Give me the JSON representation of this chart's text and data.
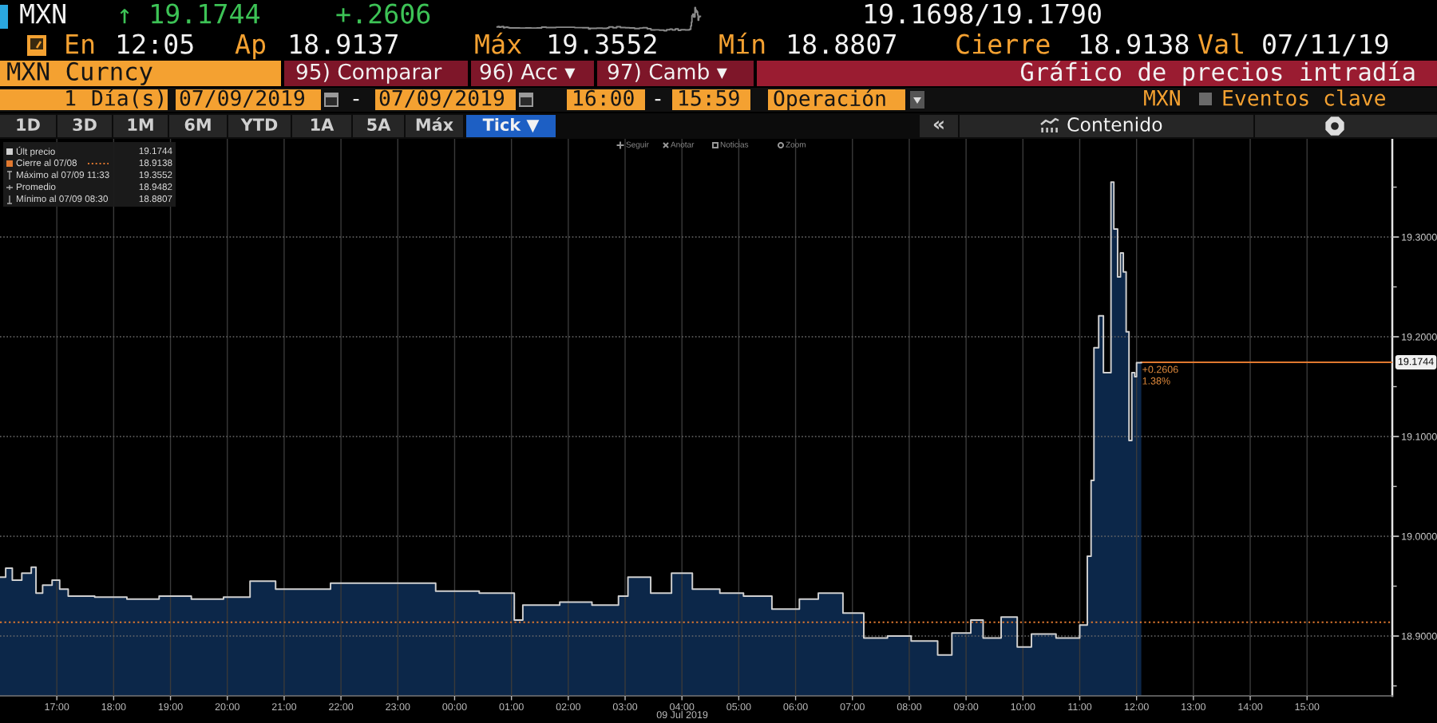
{
  "chart_data": {
    "type": "area",
    "title": "Gráfico de precios intradía",
    "xlabel": "09 Jul 2019",
    "x": [
      "2019-07-08T16:00",
      "2019-07-08T16:06",
      "2019-07-08T16:13",
      "2019-07-08T16:23",
      "2019-07-08T16:33",
      "2019-07-08T16:38",
      "2019-07-08T16:45",
      "2019-07-08T16:55",
      "2019-07-08T17:03",
      "2019-07-08T17:12",
      "2019-07-08T17:40",
      "2019-07-08T18:14",
      "2019-07-08T18:48",
      "2019-07-08T19:22",
      "2019-07-08T19:56",
      "2019-07-08T20:24",
      "2019-07-08T20:51",
      "2019-07-08T21:20",
      "2019-07-08T21:49",
      "2019-07-08T22:45",
      "2019-07-08T23:40",
      "2019-07-09T00:26",
      "2019-07-09T01:03",
      "2019-07-09T01:12",
      "2019-07-09T01:51",
      "2019-07-09T02:25",
      "2019-07-09T02:53",
      "2019-07-09T03:03",
      "2019-07-09T03:27",
      "2019-07-09T03:49",
      "2019-07-09T04:11",
      "2019-07-09T04:40",
      "2019-07-09T05:05",
      "2019-07-09T05:35",
      "2019-07-09T06:04",
      "2019-07-09T06:24",
      "2019-07-09T06:50",
      "2019-07-09T07:12",
      "2019-07-09T07:37",
      "2019-07-09T08:02",
      "2019-07-09T08:30",
      "2019-07-09T08:45",
      "2019-07-09T09:05",
      "2019-07-09T09:18",
      "2019-07-09T09:37",
      "2019-07-09T09:54",
      "2019-07-09T10:09",
      "2019-07-09T10:35",
      "2019-07-09T11:00",
      "2019-07-09T11:08",
      "2019-07-09T11:12",
      "2019-07-09T11:15",
      "2019-07-09T11:20",
      "2019-07-09T11:25",
      "2019-07-09T11:33",
      "2019-07-09T11:36",
      "2019-07-09T11:40",
      "2019-07-09T11:43",
      "2019-07-09T11:46",
      "2019-07-09T11:49",
      "2019-07-09T11:52",
      "2019-07-09T11:55",
      "2019-07-09T11:58",
      "2019-07-09T12:00",
      "2019-07-09T12:05"
    ],
    "series": [
      {
        "color": "#0c2749",
        "values": [
          18.959,
          18.968,
          18.956,
          18.963,
          18.969,
          18.943,
          18.951,
          18.956,
          18.947,
          18.94,
          18.939,
          18.937,
          18.94,
          18.937,
          18.939,
          18.955,
          18.947,
          18.947,
          18.953,
          18.953,
          18.945,
          18.943,
          18.916,
          18.931,
          18.934,
          18.931,
          18.94,
          18.959,
          18.943,
          18.963,
          18.947,
          18.943,
          18.94,
          18.927,
          18.937,
          18.943,
          18.923,
          18.898,
          18.9,
          18.895,
          18.881,
          18.903,
          18.916,
          18.898,
          18.919,
          18.889,
          18.902,
          18.898,
          18.911,
          18.98,
          19.056,
          19.189,
          19.221,
          19.164,
          19.355,
          19.308,
          19.26,
          19.284,
          19.265,
          19.205,
          19.096,
          19.164,
          19.16,
          19.174,
          19.174
        ]
      },
      {
        "type": "step",
        "name": "Últ precio",
        "color": "#d0d0d0",
        "values": [
          18.959,
          18.968,
          18.956,
          18.963,
          18.969,
          18.943,
          18.951,
          18.956,
          18.947,
          18.94,
          18.939,
          18.937,
          18.94,
          18.937,
          18.939,
          18.955,
          18.947,
          18.947,
          18.953,
          18.953,
          18.945,
          18.943,
          18.916,
          18.931,
          18.934,
          18.931,
          18.94,
          18.959,
          18.943,
          18.963,
          18.947,
          18.943,
          18.94,
          18.927,
          18.937,
          18.943,
          18.923,
          18.898,
          18.9,
          18.895,
          18.881,
          18.903,
          18.916,
          18.898,
          18.919,
          18.889,
          18.902,
          18.898,
          18.911,
          18.98,
          19.056,
          19.189,
          19.221,
          19.164,
          19.355,
          19.308,
          19.26,
          19.284,
          19.265,
          19.205,
          19.096,
          19.164,
          19.16,
          19.174,
          19.174
        ]
      }
    ],
    "xlim": [
      "2019-07-08T16:00",
      "2019-07-09T16:30"
    ],
    "xticks": [
      {
        "value": "2019-07-08T17:00",
        "label": "17:00"
      },
      {
        "value": "2019-07-08T18:00",
        "label": "18:00"
      },
      {
        "value": "2019-07-08T19:00",
        "label": "19:00"
      },
      {
        "value": "2019-07-08T20:00",
        "label": "20:00"
      },
      {
        "value": "2019-07-08T21:00",
        "label": "21:00"
      },
      {
        "value": "2019-07-08T22:00",
        "label": "22:00"
      },
      {
        "value": "2019-07-08T23:00",
        "label": "23:00"
      },
      {
        "value": "2019-07-09T00:00",
        "label": "00:00"
      },
      {
        "value": "2019-07-09T01:00",
        "label": "01:00"
      },
      {
        "value": "2019-07-09T02:00",
        "label": "02:00"
      },
      {
        "value": "2019-07-09T03:00",
        "label": "03:00"
      },
      {
        "value": "2019-07-09T04:00",
        "label": "04:00"
      },
      {
        "value": "2019-07-09T05:00",
        "label": "05:00"
      },
      {
        "value": "2019-07-09T06:00",
        "label": "06:00"
      },
      {
        "value": "2019-07-09T07:00",
        "label": "07:00"
      },
      {
        "value": "2019-07-09T08:00",
        "label": "08:00"
      },
      {
        "value": "2019-07-09T09:00",
        "label": "09:00"
      },
      {
        "value": "2019-07-09T10:00",
        "label": "10:00"
      },
      {
        "value": "2019-07-09T11:00",
        "label": "11:00"
      },
      {
        "value": "2019-07-09T12:00",
        "label": "12:00"
      },
      {
        "value": "2019-07-09T13:00",
        "label": "13:00"
      },
      {
        "value": "2019-07-09T14:00",
        "label": "14:00"
      },
      {
        "value": "2019-07-09T15:00",
        "label": "15:00"
      }
    ],
    "ylim": [
      18.84,
      19.4
    ],
    "yticks": [
      {
        "value": 18.85,
        "label": null
      },
      {
        "value": 18.9,
        "label": "18.9000"
      },
      {
        "value": 18.95,
        "label": null
      },
      {
        "value": 19.0,
        "label": "19.0000"
      },
      {
        "value": 19.05,
        "label": null
      },
      {
        "value": 19.1,
        "label": "19.1000"
      },
      {
        "value": 19.15,
        "label": null
      },
      {
        "value": 19.2,
        "label": "19.2000"
      },
      {
        "value": 19.25,
        "label": null
      },
      {
        "value": 19.3,
        "label": "19.3000"
      },
      {
        "value": 19.35,
        "label": null
      }
    ],
    "grid": true,
    "legend": "top left",
    "ref_lines": [
      {
        "axis": "y",
        "value": 18.9138,
        "label": "Cierre al 07/08",
        "color": "#e0782f",
        "line_style": "dotted"
      }
    ],
    "annotations": [
      "MXN",
      "↑ 19.1744",
      "+.2606",
      "19.1698/19.1790",
      "En",
      "12:05",
      "Ap",
      "18.9137",
      "Máx",
      "19.3552",
      "Mín",
      "18.8807",
      "Cierre",
      "18.9138",
      "Val",
      "07/11/19",
      "MXN Curncy",
      "95) Comparar",
      "96) Acc ▾",
      "97) Camb ▾",
      "1",
      "Día(s)",
      "07/09/2019",
      "-",
      "07/09/2019",
      "16:00",
      "-",
      "15:59",
      "Operación",
      "MXN",
      "Eventos clave",
      "1D",
      "3D",
      "1M",
      "6M",
      "YTD",
      "1A",
      "5A",
      "Máx",
      "Tick ▼",
      "«",
      "Contenido",
      "Seguir",
      "Anotar",
      "Noticias",
      "Zoom",
      "19.1744",
      "18.9138",
      "Máximo al 07/09 11:33",
      "19.3552",
      "Promedio",
      "18.9482",
      "Mínimo al 07/09 08:30",
      "18.8807",
      {
        "text": "19.1744",
        "y": 19.1744
      },
      {
        "text": "+0.2606\n1.38%",
        "x": "2019-07-09T12:00",
        "y": 19.1744
      }
    ]
  }
}
